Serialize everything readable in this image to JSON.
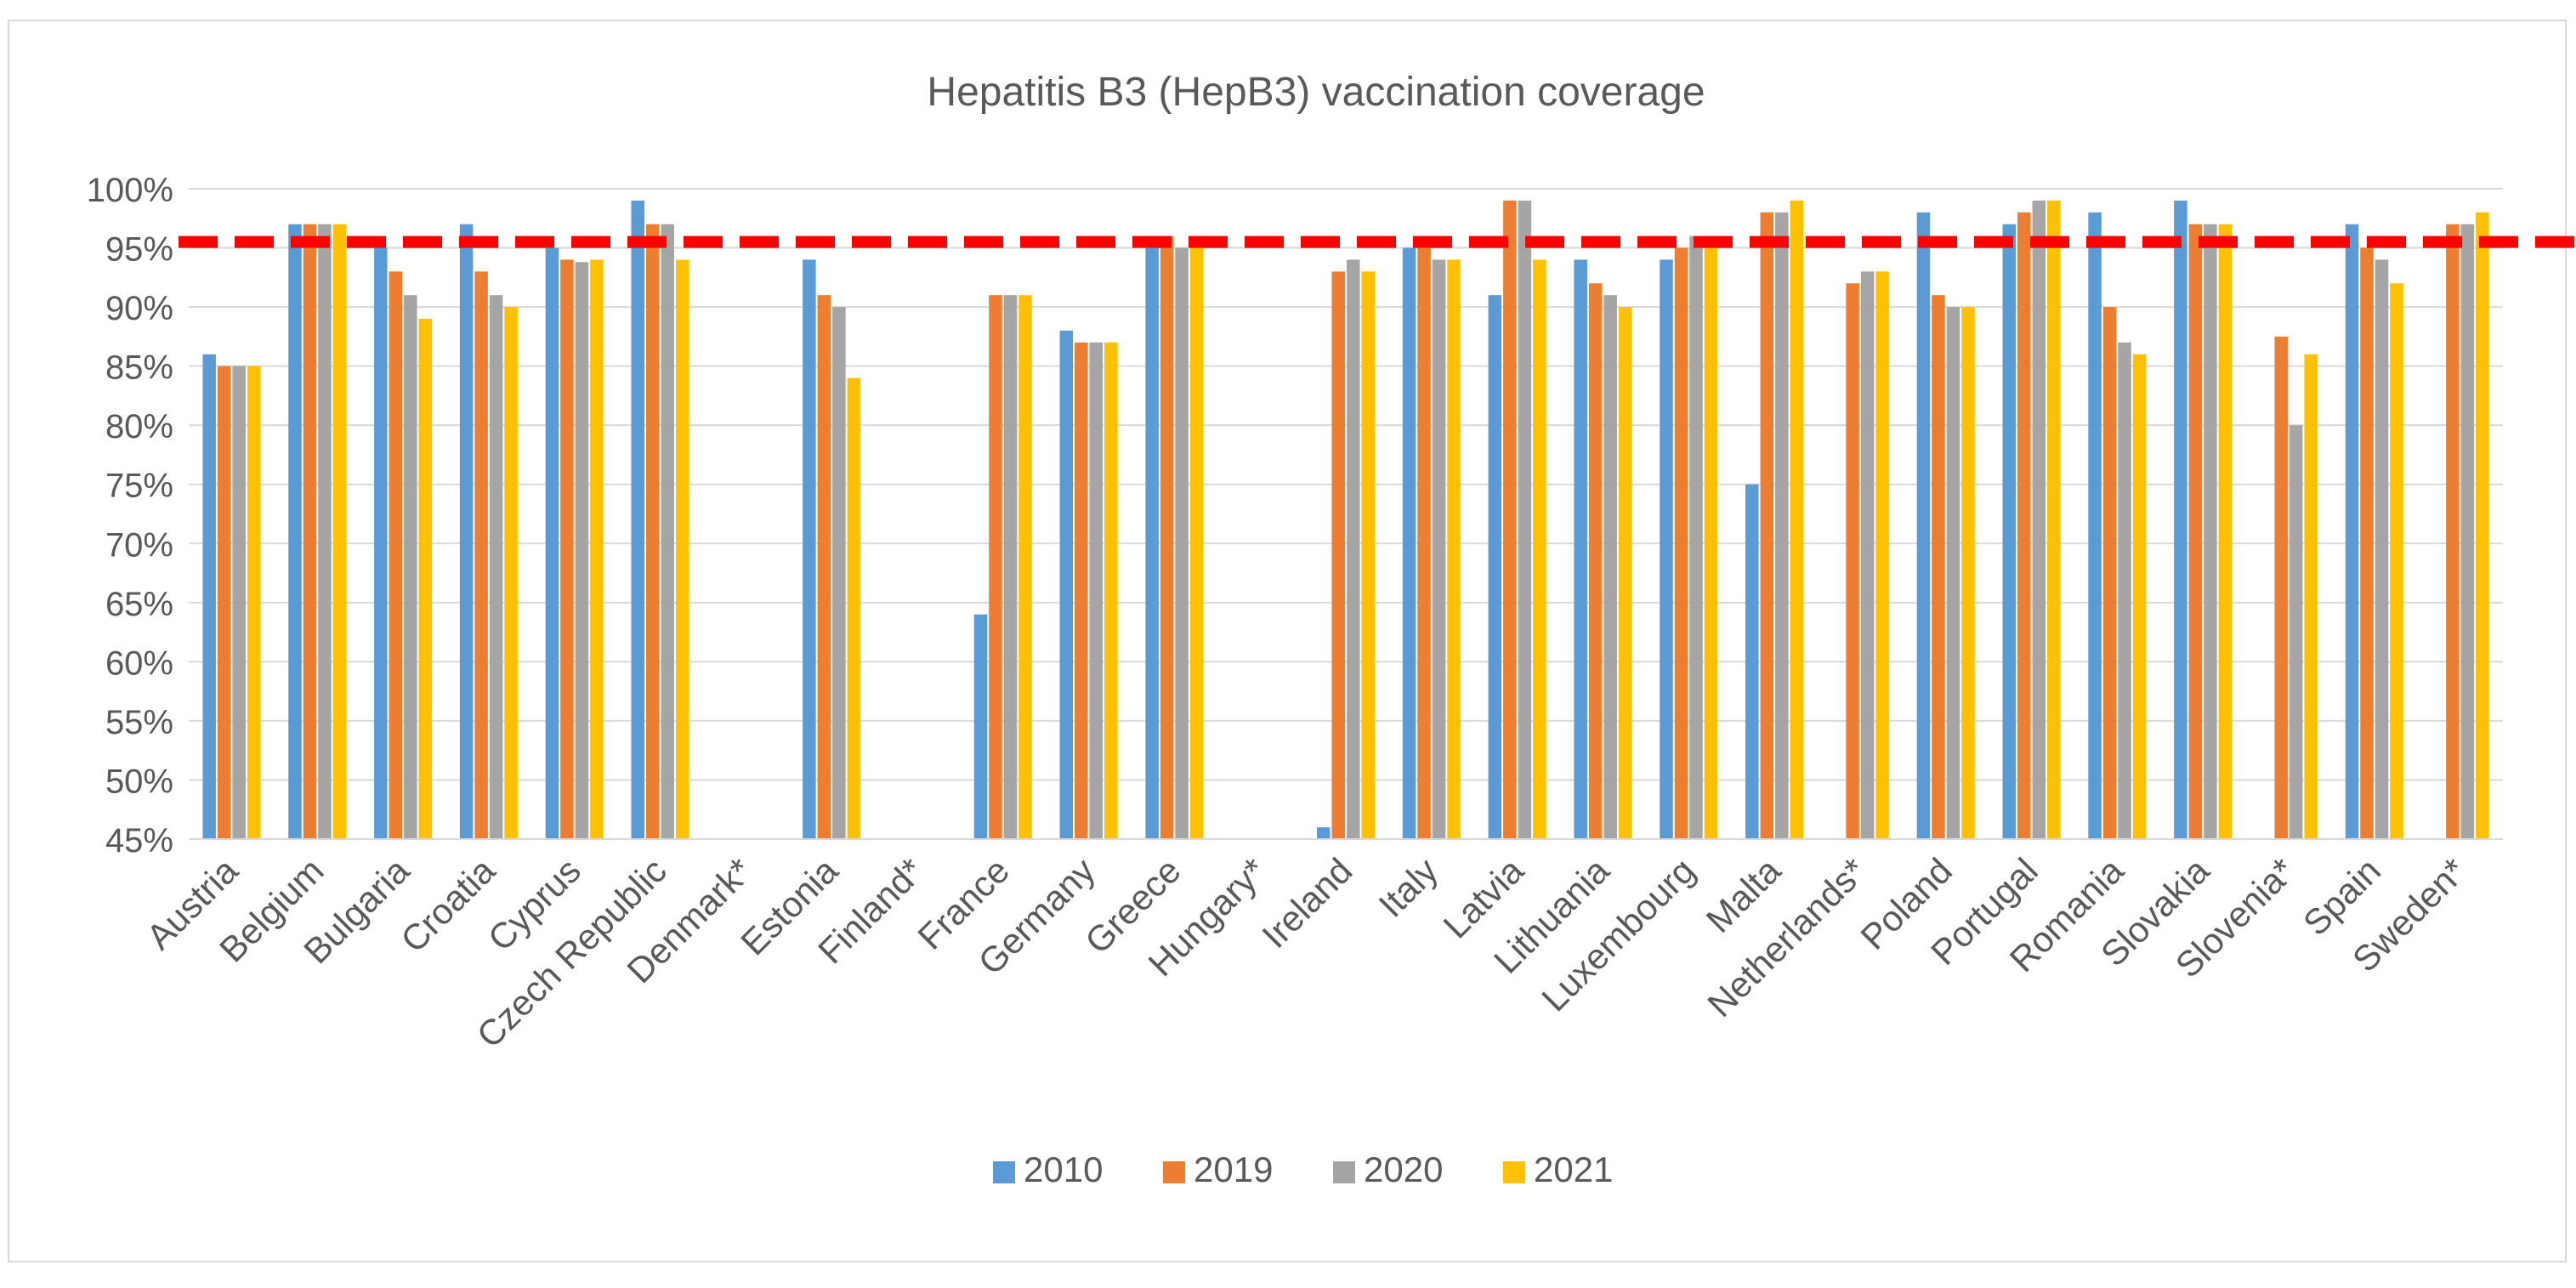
{
  "chart_data": {
    "type": "bar",
    "title": "Hepatitis B3 (HepB3) vaccination coverage",
    "xlabel": "",
    "ylabel": "",
    "ylim": [
      45,
      100
    ],
    "y_tick_step": 5,
    "y_tick_suffix": "%",
    "grid": true,
    "legend_position": "bottom",
    "reference_line": {
      "value": 95.5,
      "color": "#ff0000",
      "style": "dashed"
    },
    "categories": [
      "Austria",
      "Belgium",
      "Bulgaria",
      "Croatia",
      "Cyprus",
      "Czech Republic",
      "Denmark*",
      "Estonia",
      "Finland*",
      "France",
      "Germany",
      "Greece",
      "Hungary*",
      "Ireland",
      "Italy",
      "Latvia",
      "Lithuania",
      "Luxembourg",
      "Malta",
      "Netherlands*",
      "Poland",
      "Portugal",
      "Romania",
      "Slovakia",
      "Slovenia*",
      "Spain",
      "Sweden*"
    ],
    "series": [
      {
        "name": "2010",
        "color": "#5b9bd5",
        "values": [
          86,
          97,
          95,
          97,
          95,
          99,
          null,
          94,
          null,
          64,
          88,
          95,
          null,
          46,
          95,
          91,
          94,
          94,
          75,
          null,
          98,
          97,
          98,
          99,
          null,
          97,
          null
        ]
      },
      {
        "name": "2019",
        "color": "#ed7d31",
        "values": [
          85,
          97,
          93,
          93,
          94,
          97,
          null,
          91,
          null,
          91,
          87,
          96,
          null,
          93,
          95,
          99,
          92,
          95,
          98,
          92,
          91,
          98,
          90,
          97,
          87.5,
          95,
          97
        ]
      },
      {
        "name": "2020",
        "color": "#a5a5a5",
        "values": [
          85,
          97,
          91,
          91,
          93.8,
          97,
          null,
          90,
          null,
          91,
          87,
          95,
          null,
          94,
          94,
          99,
          91,
          96,
          98,
          93,
          90,
          99,
          87,
          97,
          80,
          94,
          97
        ]
      },
      {
        "name": "2021",
        "color": "#ffc000",
        "values": [
          85,
          97,
          89,
          90,
          94,
          94,
          null,
          84,
          null,
          91,
          87,
          96,
          null,
          93,
          94,
          94,
          90,
          95,
          99,
          93,
          90,
          99,
          86,
          97,
          86,
          92,
          98
        ]
      }
    ]
  }
}
